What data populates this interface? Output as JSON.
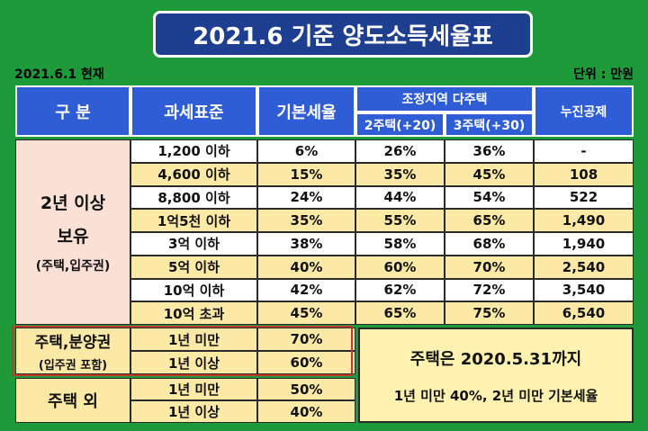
{
  "title": "2021.6 기준 양도소득세율표",
  "date_note": "2021.6.1 현재",
  "unit_note": "단위 : 만원",
  "headers": {
    "category": "구 분",
    "tax_base": "과세표준",
    "basic_rate": "기본세율",
    "adjusted": "조정지역 다주택",
    "two_house": "2주택(+20)",
    "three_house": "3주택(+30)",
    "deduction": "누진공제"
  },
  "holding_group": {
    "line1": "2년 이상",
    "line2": "보유",
    "line3": "(주택,입주권)"
  },
  "rows": [
    {
      "base": "1,200 이하",
      "rate": "6%",
      "two": "26%",
      "three": "36%",
      "ded": "-"
    },
    {
      "base": "4,600 이하",
      "rate": "15%",
      "two": "35%",
      "three": "45%",
      "ded": "108"
    },
    {
      "base": "8,800 이하",
      "rate": "24%",
      "two": "44%",
      "three": "54%",
      "ded": "522"
    },
    {
      "base": "1억5천 이하",
      "rate": "35%",
      "two": "55%",
      "three": "65%",
      "ded": "1,490"
    },
    {
      "base": "3억 이하",
      "rate": "38%",
      "two": "58%",
      "three": "68%",
      "ded": "1,940"
    },
    {
      "base": "5억 이하",
      "rate": "40%",
      "two": "60%",
      "three": "70%",
      "ded": "2,540"
    },
    {
      "base": "10억 이하",
      "rate": "42%",
      "two": "62%",
      "three": "72%",
      "ded": "3,540"
    },
    {
      "base": "10억 초과",
      "rate": "45%",
      "two": "65%",
      "three": "75%",
      "ded": "6,540"
    }
  ],
  "presale_group": {
    "line1": "주택,분양권",
    "line2": "(입주권 포함)",
    "rows": [
      {
        "period": "1년 미만",
        "rate": "70%"
      },
      {
        "period": "1년 이상",
        "rate": "60%"
      }
    ]
  },
  "other_group": {
    "label": "주택 외",
    "rows": [
      {
        "period": "1년 미만",
        "rate": "50%"
      },
      {
        "period": "1년 이상",
        "rate": "40%"
      }
    ]
  },
  "note": {
    "line1": "주택은 2020.5.31까지",
    "line2": "1년 미만 40%, 2년 미만 기본세율"
  }
}
